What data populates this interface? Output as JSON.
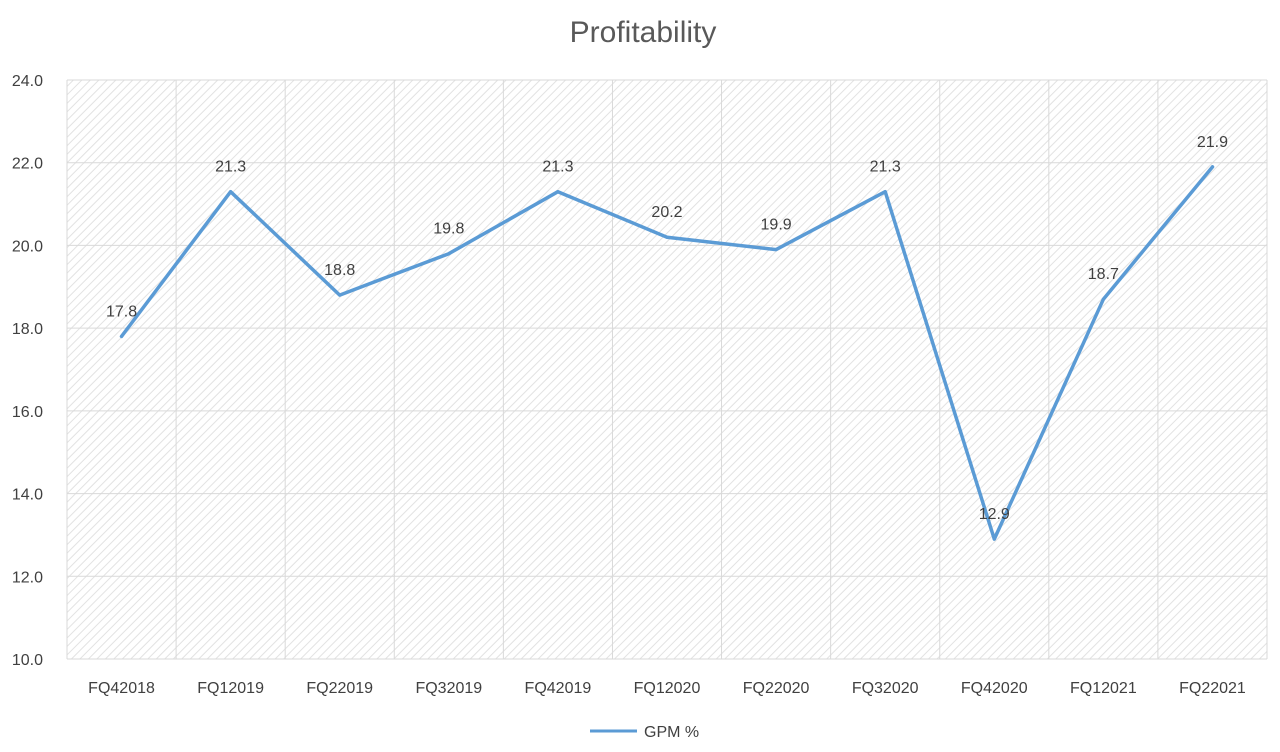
{
  "chart_data": {
    "type": "line",
    "title": "Profitability",
    "xlabel": "",
    "ylabel": "",
    "categories": [
      "FQ42018",
      "FQ12019",
      "FQ22019",
      "FQ32019",
      "FQ42019",
      "FQ12020",
      "FQ22020",
      "FQ32020",
      "FQ42020",
      "FQ12021",
      "FQ22021"
    ],
    "series": [
      {
        "name": "GPM %",
        "values": [
          17.8,
          21.3,
          18.8,
          19.8,
          21.3,
          20.2,
          19.9,
          21.3,
          12.9,
          18.7,
          21.9
        ],
        "color": "#5B9BD5"
      }
    ],
    "data_labels": [
      "17.8",
      "21.3",
      "18.8",
      "19.8",
      "21.3",
      "20.2",
      "19.9",
      "21.3",
      "12.9",
      "18.7",
      "21.9"
    ],
    "ylim": [
      10,
      24
    ],
    "yticks": [
      10,
      12,
      14,
      16,
      18,
      20,
      22,
      24
    ],
    "ytick_labels": [
      "10.0",
      "12.0",
      "14.0",
      "16.0",
      "18.0",
      "20.0",
      "22.0",
      "24.0"
    ],
    "grid": true,
    "legend_position": "bottom",
    "plot_background": "hatched light gray",
    "gridline_color": "#D9D9D9"
  }
}
